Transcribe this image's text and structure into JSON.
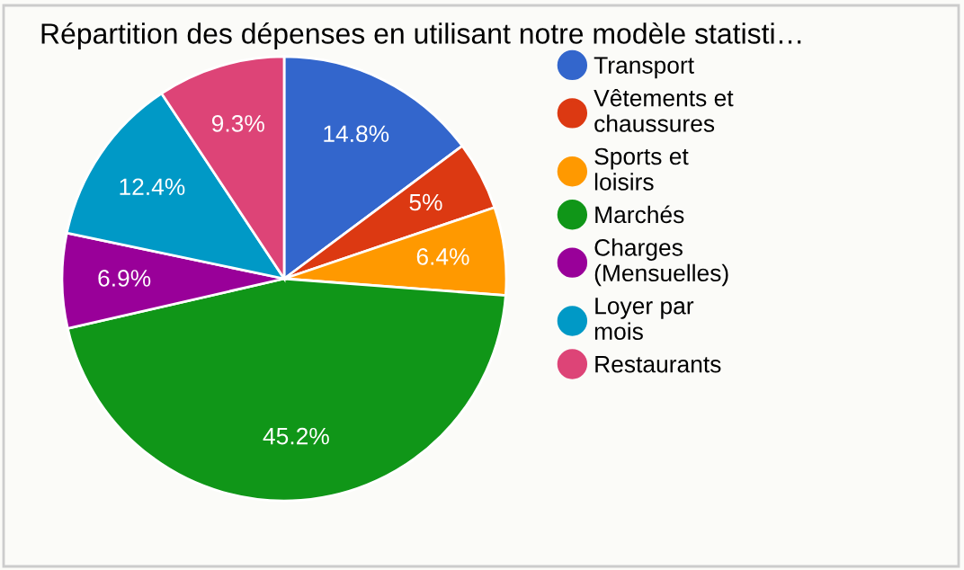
{
  "chart_data": {
    "type": "pie",
    "title": "Répartition des dépenses en utilisant notre modèle statisti…",
    "categories": [
      "Transport",
      "Vêtements et chaussures",
      "Sports et loisirs",
      "Marchés",
      "Charges (Mensuelles)",
      "Loyer par mois",
      "Restaurants"
    ],
    "values": [
      14.8,
      5,
      6.4,
      45.2,
      6.9,
      12.4,
      9.3
    ],
    "value_labels": [
      "14.8%",
      "5%",
      "6.4%",
      "45.2%",
      "6.9%",
      "12.4%",
      "9.3%"
    ],
    "colors": [
      "#3366cc",
      "#dc3912",
      "#ff9900",
      "#109618",
      "#990099",
      "#0099c6",
      "#dd4477"
    ],
    "legend": "right"
  }
}
